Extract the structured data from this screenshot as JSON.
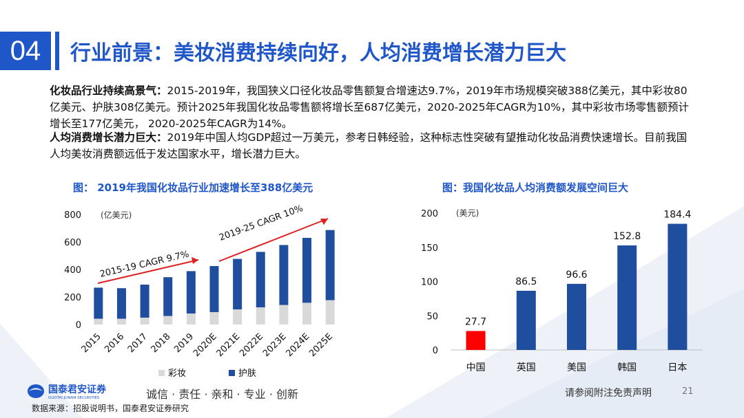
{
  "section_number": "04",
  "title": "行业前景：美妆消费持续向好，人均消费增长潜力巨大",
  "paragraphs": [
    {
      "bold": "化妆品行业持续高景气：",
      "text": "2015-2019年，我国狭义口径化妆品零售额复合增速达9.7%，2019年市场规模突破388亿美元，其中彩妆80亿美元、护肤308亿美元。预计2025年我国化妆品零售额将增长至687亿美元，2020-2025年CAGR为10%，其中彩妆市场零售额预计增长至177亿美元，  2020-2025年CAGR为14%。"
    },
    {
      "bold": "人均消费增长潜力巨大：",
      "text": "2019年中国人均GDP超过一万美元，参考日韩经验，这种标志性突破有望推动化妆品消费快速增长。目前我国人均美妆消费额远低于发达国家水平，增长潜力巨大。"
    }
  ],
  "chart_data": [
    {
      "type": "bar",
      "title": "图：  2019年我国化妆品行业加速增长至388亿美元",
      "unit": "(亿美元)",
      "categories": [
        "2015",
        "2016",
        "2017",
        "2018",
        "2019",
        "2020E",
        "2021E",
        "2022E",
        "2023E",
        "2024E",
        "2025E"
      ],
      "stacked": true,
      "series": [
        {
          "name": "彩妆",
          "color": "#d9d9d9",
          "values": [
            42,
            42,
            50,
            62,
            80,
            90,
            110,
            125,
            142,
            158,
            177
          ]
        },
        {
          "name": "护肤",
          "color": "#1f4e9e",
          "values": [
            226,
            222,
            240,
            282,
            308,
            335,
            367,
            403,
            436,
            472,
            510
          ]
        }
      ],
      "ylim": [
        0,
        800
      ],
      "yticks": [
        0,
        200,
        400,
        600,
        800
      ],
      "annotations": [
        "2015-19 CAGR 9.7%",
        "2019-25 CAGR 10%"
      ],
      "legend": "bottom"
    },
    {
      "type": "bar",
      "title": "图：我国化妆品人均消费额发展空间巨大",
      "unit": "(美元)",
      "categories": [
        "中国",
        "英国",
        "美国",
        "韩国",
        "日本"
      ],
      "values": [
        27.7,
        86.5,
        96.6,
        152.8,
        184.4
      ],
      "labels": [
        "27.7",
        "86.5",
        "96.6",
        "152.8",
        "184.4"
      ],
      "colors": [
        "#ff0000",
        "#1f4e9e",
        "#1f4e9e",
        "#1f4e9e",
        "#1f4e9e"
      ],
      "ylim": [
        0,
        200
      ],
      "yticks": [
        0,
        50,
        100,
        150,
        200
      ]
    }
  ],
  "footer": {
    "logo_cn": "国泰君安证券",
    "logo_en": "GUOTAI JUNAN SECURITIES",
    "slogan": "诚信 · 责任 · 亲和 · 专业 · 创新",
    "disclaimer": "请参阅附注免责声明",
    "page": "21",
    "source": "数据来源：招股说明书，国泰君安证券研究"
  },
  "colors": {
    "brand_blue": "#1f56c8",
    "bar_blue": "#1f4e9e",
    "china_red": "#ff0000",
    "makeup_gray": "#d9d9d9"
  }
}
